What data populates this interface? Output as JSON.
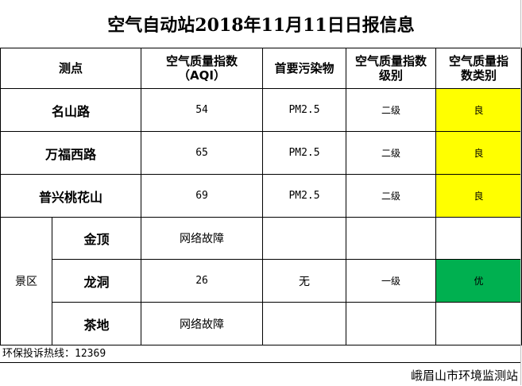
{
  "title": "空气自动站2018年11月11日日报信息",
  "headers": {
    "station": "测点",
    "aqi_line1": "空气质量指数",
    "aqi_line2": "（AQI）",
    "pollutant": "首要污染物",
    "level_line1": "空气质量指数",
    "level_line2": "级别",
    "category_line1": "空气质量指",
    "category_line2": "数类别"
  },
  "rows": [
    {
      "name": "名山路",
      "aqi": "54",
      "pollutant": "PM2.5",
      "level": "二级",
      "category": "良",
      "category_color": "#ffff00"
    },
    {
      "name": "万福西路",
      "aqi": "65",
      "pollutant": "PM2.5",
      "level": "二级",
      "category": "良",
      "category_color": "#ffff00"
    },
    {
      "name": "普兴桃花山",
      "aqi": "69",
      "pollutant": "PM2.5",
      "level": "二级",
      "category": "良",
      "category_color": "#ffff00"
    }
  ],
  "scenic": {
    "group_label": "景区",
    "rows": [
      {
        "name": "金顶",
        "aqi": "网络故障",
        "pollutant": "",
        "level": "",
        "category": ""
      },
      {
        "name": "龙洞",
        "aqi": "26",
        "pollutant": "无",
        "level": "一级",
        "category": "优",
        "category_color": "#00b050"
      },
      {
        "name": "茶地",
        "aqi": "网络故障",
        "pollutant": "",
        "level": "",
        "category": ""
      }
    ]
  },
  "hotline": {
    "label": "环保投诉热线：",
    "number": "12369"
  },
  "footer": "峨眉山市环境监测站"
}
